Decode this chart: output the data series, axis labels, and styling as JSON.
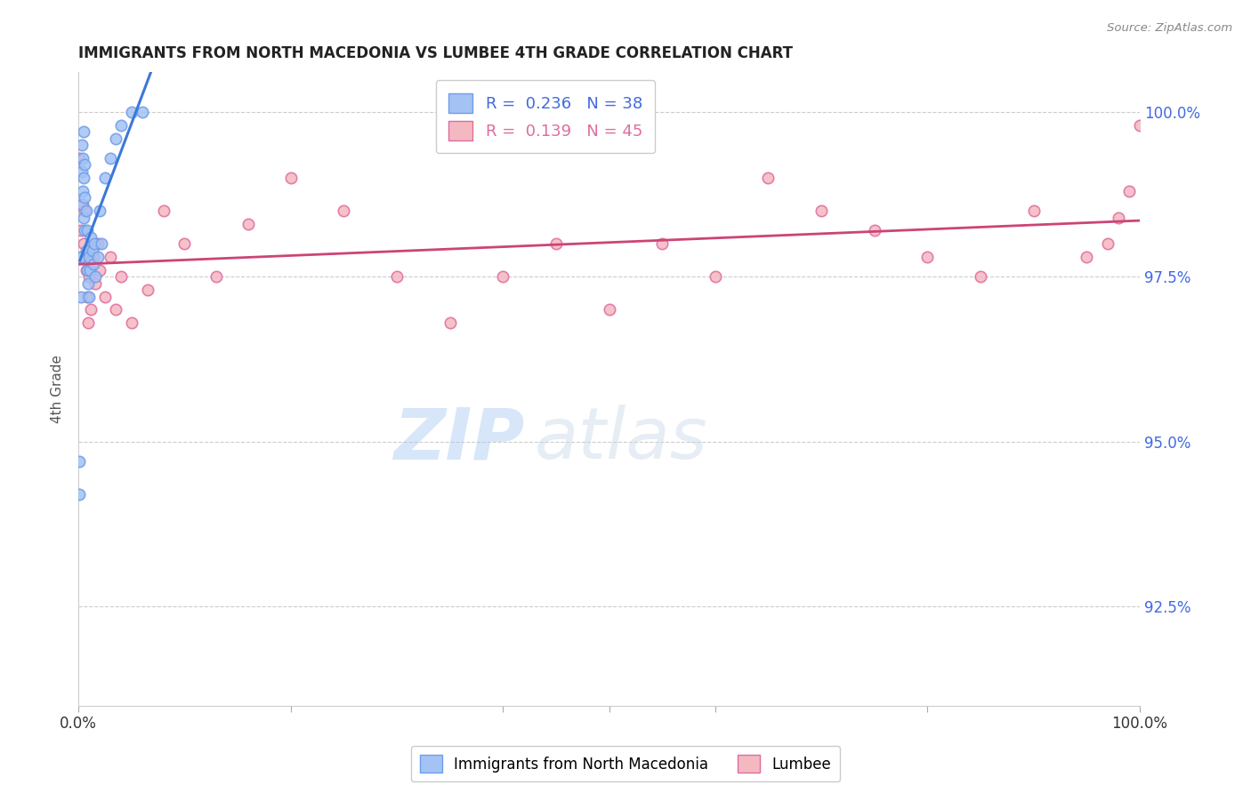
{
  "title": "IMMIGRANTS FROM NORTH MACEDONIA VS LUMBEE 4TH GRADE CORRELATION CHART",
  "source": "Source: ZipAtlas.com",
  "ylabel": "4th Grade",
  "ytick_labels": [
    "92.5%",
    "95.0%",
    "97.5%",
    "100.0%"
  ],
  "ytick_values": [
    0.925,
    0.95,
    0.975,
    1.0
  ],
  "xlim": [
    0.0,
    1.0
  ],
  "ylim": [
    0.91,
    1.006
  ],
  "legend_blue_R": "0.236",
  "legend_blue_N": "38",
  "legend_pink_R": "0.139",
  "legend_pink_N": "45",
  "blue_color": "#a4c2f4",
  "pink_color": "#f4b8c1",
  "blue_edge_color": "#6d9eeb",
  "pink_edge_color": "#e06c9f",
  "blue_line_color": "#3c78d8",
  "pink_line_color": "#cc4477",
  "marker_size": 80,
  "blue_scatter_x": [
    0.001,
    0.001,
    0.002,
    0.002,
    0.003,
    0.003,
    0.003,
    0.004,
    0.004,
    0.005,
    0.005,
    0.005,
    0.006,
    0.006,
    0.006,
    0.007,
    0.007,
    0.008,
    0.008,
    0.009,
    0.009,
    0.01,
    0.01,
    0.011,
    0.012,
    0.013,
    0.014,
    0.015,
    0.016,
    0.018,
    0.02,
    0.022,
    0.025,
    0.03,
    0.035,
    0.04,
    0.05,
    0.06
  ],
  "blue_scatter_y": [
    0.942,
    0.947,
    0.972,
    0.978,
    0.986,
    0.991,
    0.995,
    0.988,
    0.993,
    0.984,
    0.99,
    0.997,
    0.982,
    0.987,
    0.992,
    0.979,
    0.985,
    0.976,
    0.982,
    0.974,
    0.979,
    0.972,
    0.978,
    0.976,
    0.981,
    0.979,
    0.977,
    0.98,
    0.975,
    0.978,
    0.985,
    0.98,
    0.99,
    0.993,
    0.996,
    0.998,
    1.0,
    1.0
  ],
  "pink_scatter_x": [
    0.001,
    0.002,
    0.003,
    0.004,
    0.005,
    0.006,
    0.007,
    0.008,
    0.009,
    0.01,
    0.012,
    0.014,
    0.016,
    0.018,
    0.02,
    0.025,
    0.03,
    0.035,
    0.04,
    0.05,
    0.065,
    0.08,
    0.1,
    0.13,
    0.16,
    0.2,
    0.25,
    0.3,
    0.35,
    0.4,
    0.45,
    0.5,
    0.55,
    0.6,
    0.65,
    0.7,
    0.75,
    0.8,
    0.85,
    0.9,
    0.95,
    0.97,
    0.98,
    0.99,
    1.0
  ],
  "pink_scatter_y": [
    0.993,
    0.982,
    0.978,
    0.986,
    0.98,
    0.985,
    0.976,
    0.972,
    0.968,
    0.975,
    0.97,
    0.978,
    0.974,
    0.98,
    0.976,
    0.972,
    0.978,
    0.97,
    0.975,
    0.968,
    0.973,
    0.985,
    0.98,
    0.975,
    0.983,
    0.99,
    0.985,
    0.975,
    0.968,
    0.975,
    0.98,
    0.97,
    0.98,
    0.975,
    0.99,
    0.985,
    0.982,
    0.978,
    0.975,
    0.985,
    0.978,
    0.98,
    0.984,
    0.988,
    0.998
  ],
  "watermark_zip": "ZIP",
  "watermark_atlas": "atlas",
  "background_color": "#ffffff",
  "grid_color": "#cccccc"
}
